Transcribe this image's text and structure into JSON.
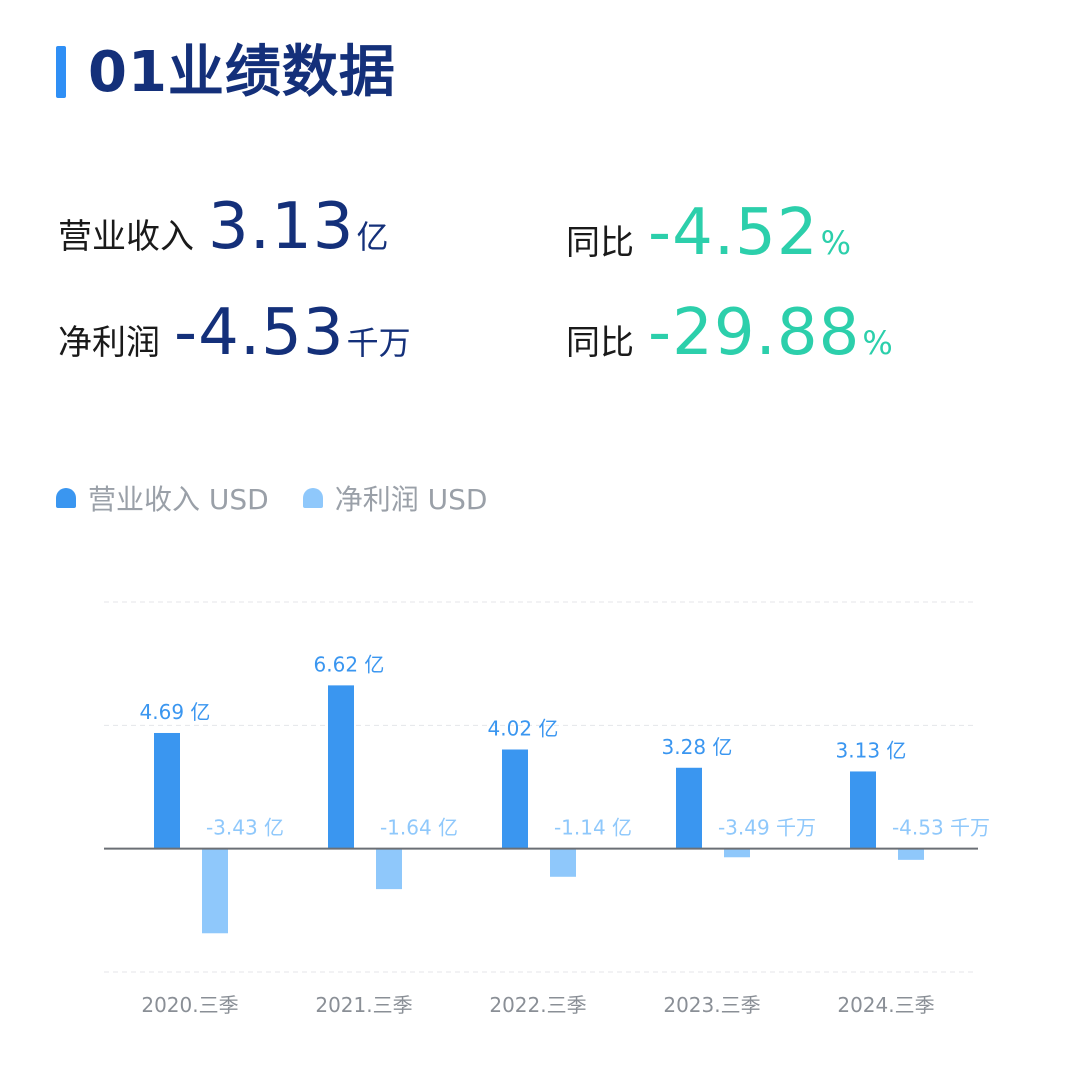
{
  "header": {
    "title": "01业绩数据"
  },
  "metrics": {
    "revenue": {
      "label": "营业收入",
      "value": "3.13",
      "unit": "亿"
    },
    "revenue_yoy": {
      "label": "同比",
      "value": "-4.52",
      "unit": "%"
    },
    "net_profit": {
      "label": "净利润",
      "value": "-4.53",
      "unit": "千万"
    },
    "net_profit_yoy": {
      "label": "同比",
      "value": "-29.88",
      "unit": "%"
    }
  },
  "colors": {
    "revenue": "#3a96f0",
    "net_profit": "#8fc8fb",
    "title": "#14307a",
    "positive_text": "#2ccfab",
    "axis": "#6b6f75",
    "grid": "#e4e6ea",
    "tick": "#8a8f96"
  },
  "chart_data": {
    "type": "bar",
    "categories": [
      "2020.三季",
      "2021.三季",
      "2022.三季",
      "2023.三季",
      "2024.三季"
    ],
    "series": [
      {
        "name": "营业收入 USD",
        "values": [
          469000000,
          662000000,
          402000000,
          328000000,
          313000000
        ],
        "labels": [
          "4.69 亿",
          "6.62 亿",
          "4.02 亿",
          "3.28 亿",
          "3.13 亿"
        ]
      },
      {
        "name": "净利润 USD",
        "values": [
          -343000000,
          -164000000,
          -114000000,
          -34900000,
          -45300000
        ],
        "labels": [
          "-3.43 亿",
          "-1.64 亿",
          "-1.14 亿",
          "-3.49 千万",
          "-4.53 千万"
        ]
      }
    ],
    "ylim": [
      -500000000,
      1000000000
    ],
    "grid": true,
    "legend_position": "top-left"
  }
}
